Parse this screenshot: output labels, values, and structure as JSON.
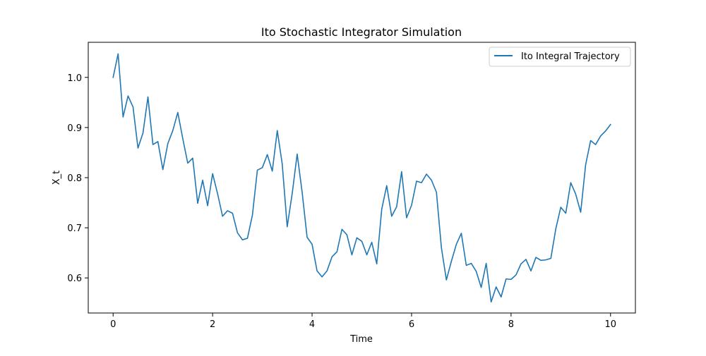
{
  "chart_data": {
    "type": "line",
    "title": "Ito Stochastic Integrator Simulation",
    "xlabel": "Time",
    "ylabel": "X_t",
    "xlim": [
      -0.5,
      10.5
    ],
    "ylim": [
      0.53,
      1.07
    ],
    "xticks": [
      0,
      2,
      4,
      6,
      8,
      10
    ],
    "yticks": [
      0.6,
      0.7,
      0.8,
      0.9,
      1.0
    ],
    "xtick_labels": [
      "0",
      "2",
      "4",
      "6",
      "8",
      "10"
    ],
    "ytick_labels": [
      "0.6",
      "0.7",
      "0.8",
      "0.9",
      "1.0"
    ],
    "grid": false,
    "legend": {
      "position": "top-right"
    },
    "series": [
      {
        "name": "Ito Integral Trajectory",
        "color": "#1f77b4",
        "x": [
          0.0,
          0.1,
          0.2,
          0.3,
          0.4,
          0.5,
          0.6,
          0.7,
          0.8,
          0.9,
          1.0,
          1.1,
          1.2,
          1.3,
          1.4,
          1.5,
          1.6,
          1.7,
          1.8,
          1.9,
          2.0,
          2.1,
          2.2,
          2.3,
          2.4,
          2.5,
          2.6,
          2.7,
          2.8,
          2.9,
          3.0,
          3.1,
          3.2,
          3.3,
          3.4,
          3.5,
          3.6,
          3.7,
          3.8,
          3.9,
          4.0,
          4.1,
          4.2,
          4.3,
          4.4,
          4.5,
          4.6,
          4.7,
          4.8,
          4.9,
          5.0,
          5.1,
          5.2,
          5.3,
          5.4,
          5.5,
          5.6,
          5.7,
          5.8,
          5.9,
          6.0,
          6.1,
          6.2,
          6.3,
          6.4,
          6.5,
          6.6,
          6.7,
          6.8,
          6.9,
          7.0,
          7.1,
          7.2,
          7.3,
          7.4,
          7.5,
          7.6,
          7.7,
          7.8,
          7.9,
          8.0,
          8.1,
          8.2,
          8.3,
          8.4,
          8.5,
          8.6,
          8.7,
          8.8,
          8.9,
          9.0,
          9.1,
          9.2,
          9.3,
          9.4,
          9.5,
          9.6,
          9.7,
          9.8,
          9.9,
          10.0
        ],
        "y": [
          1.0,
          1.047,
          0.921,
          0.963,
          0.941,
          0.859,
          0.889,
          0.961,
          0.866,
          0.872,
          0.816,
          0.868,
          0.894,
          0.93,
          0.878,
          0.829,
          0.839,
          0.749,
          0.795,
          0.744,
          0.808,
          0.768,
          0.723,
          0.734,
          0.729,
          0.69,
          0.676,
          0.679,
          0.725,
          0.815,
          0.82,
          0.846,
          0.813,
          0.894,
          0.827,
          0.702,
          0.768,
          0.847,
          0.771,
          0.681,
          0.667,
          0.614,
          0.602,
          0.614,
          0.642,
          0.652,
          0.697,
          0.686,
          0.646,
          0.68,
          0.673,
          0.646,
          0.671,
          0.628,
          0.737,
          0.784,
          0.723,
          0.742,
          0.812,
          0.72,
          0.745,
          0.793,
          0.79,
          0.807,
          0.795,
          0.771,
          0.66,
          0.596,
          0.633,
          0.667,
          0.689,
          0.625,
          0.629,
          0.613,
          0.581,
          0.629,
          0.552,
          0.582,
          0.562,
          0.598,
          0.597,
          0.606,
          0.628,
          0.637,
          0.614,
          0.641,
          0.635,
          0.636,
          0.639,
          0.698,
          0.741,
          0.729,
          0.79,
          0.767,
          0.731,
          0.826,
          0.874,
          0.866,
          0.883,
          0.893,
          0.906
        ]
      }
    ]
  }
}
